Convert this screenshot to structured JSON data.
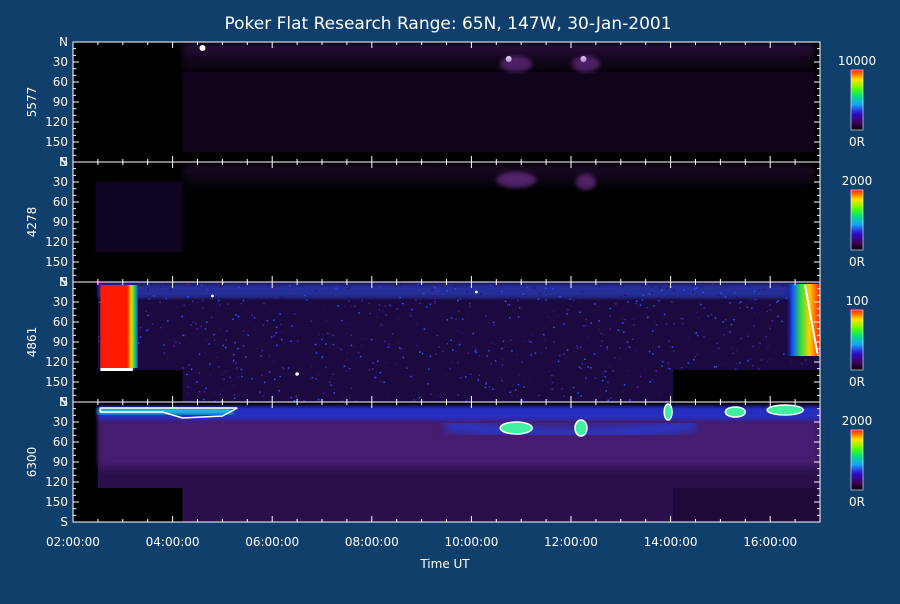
{
  "chart_data": {
    "type": "heatmap",
    "title": "Poker Flat Research Range: 65N, 147W, 30-Jan-2001",
    "xlabel": "Time UT",
    "x_range": [
      "02:00:00",
      "17:00:00"
    ],
    "x_ticks": [
      "02:00:00",
      "04:00:00",
      "06:00:00",
      "08:00:00",
      "10:00:00",
      "12:00:00",
      "14:00:00",
      "16:00:00"
    ],
    "y_ticks": [
      "N",
      "30",
      "60",
      "90",
      "120",
      "150",
      "S"
    ],
    "y_range": [
      0,
      180
    ],
    "panels": [
      {
        "wavelength": "5577",
        "colorbar_max_label": "10000",
        "colorbar_min_label": "0R",
        "colorbar_max": 10000
      },
      {
        "wavelength": "4278",
        "colorbar_max_label": "2000",
        "colorbar_min_label": "0R",
        "colorbar_max": 2000
      },
      {
        "wavelength": "4861",
        "colorbar_max_label": "100",
        "colorbar_min_label": "0R",
        "colorbar_max": 100
      },
      {
        "wavelength": "6300",
        "colorbar_max_label": "2000",
        "colorbar_min_label": "0R",
        "colorbar_max": 2000
      }
    ]
  },
  "colors": {
    "background": "#0f3f6a",
    "axis": "#ffffff",
    "plot_background": "#000000"
  }
}
